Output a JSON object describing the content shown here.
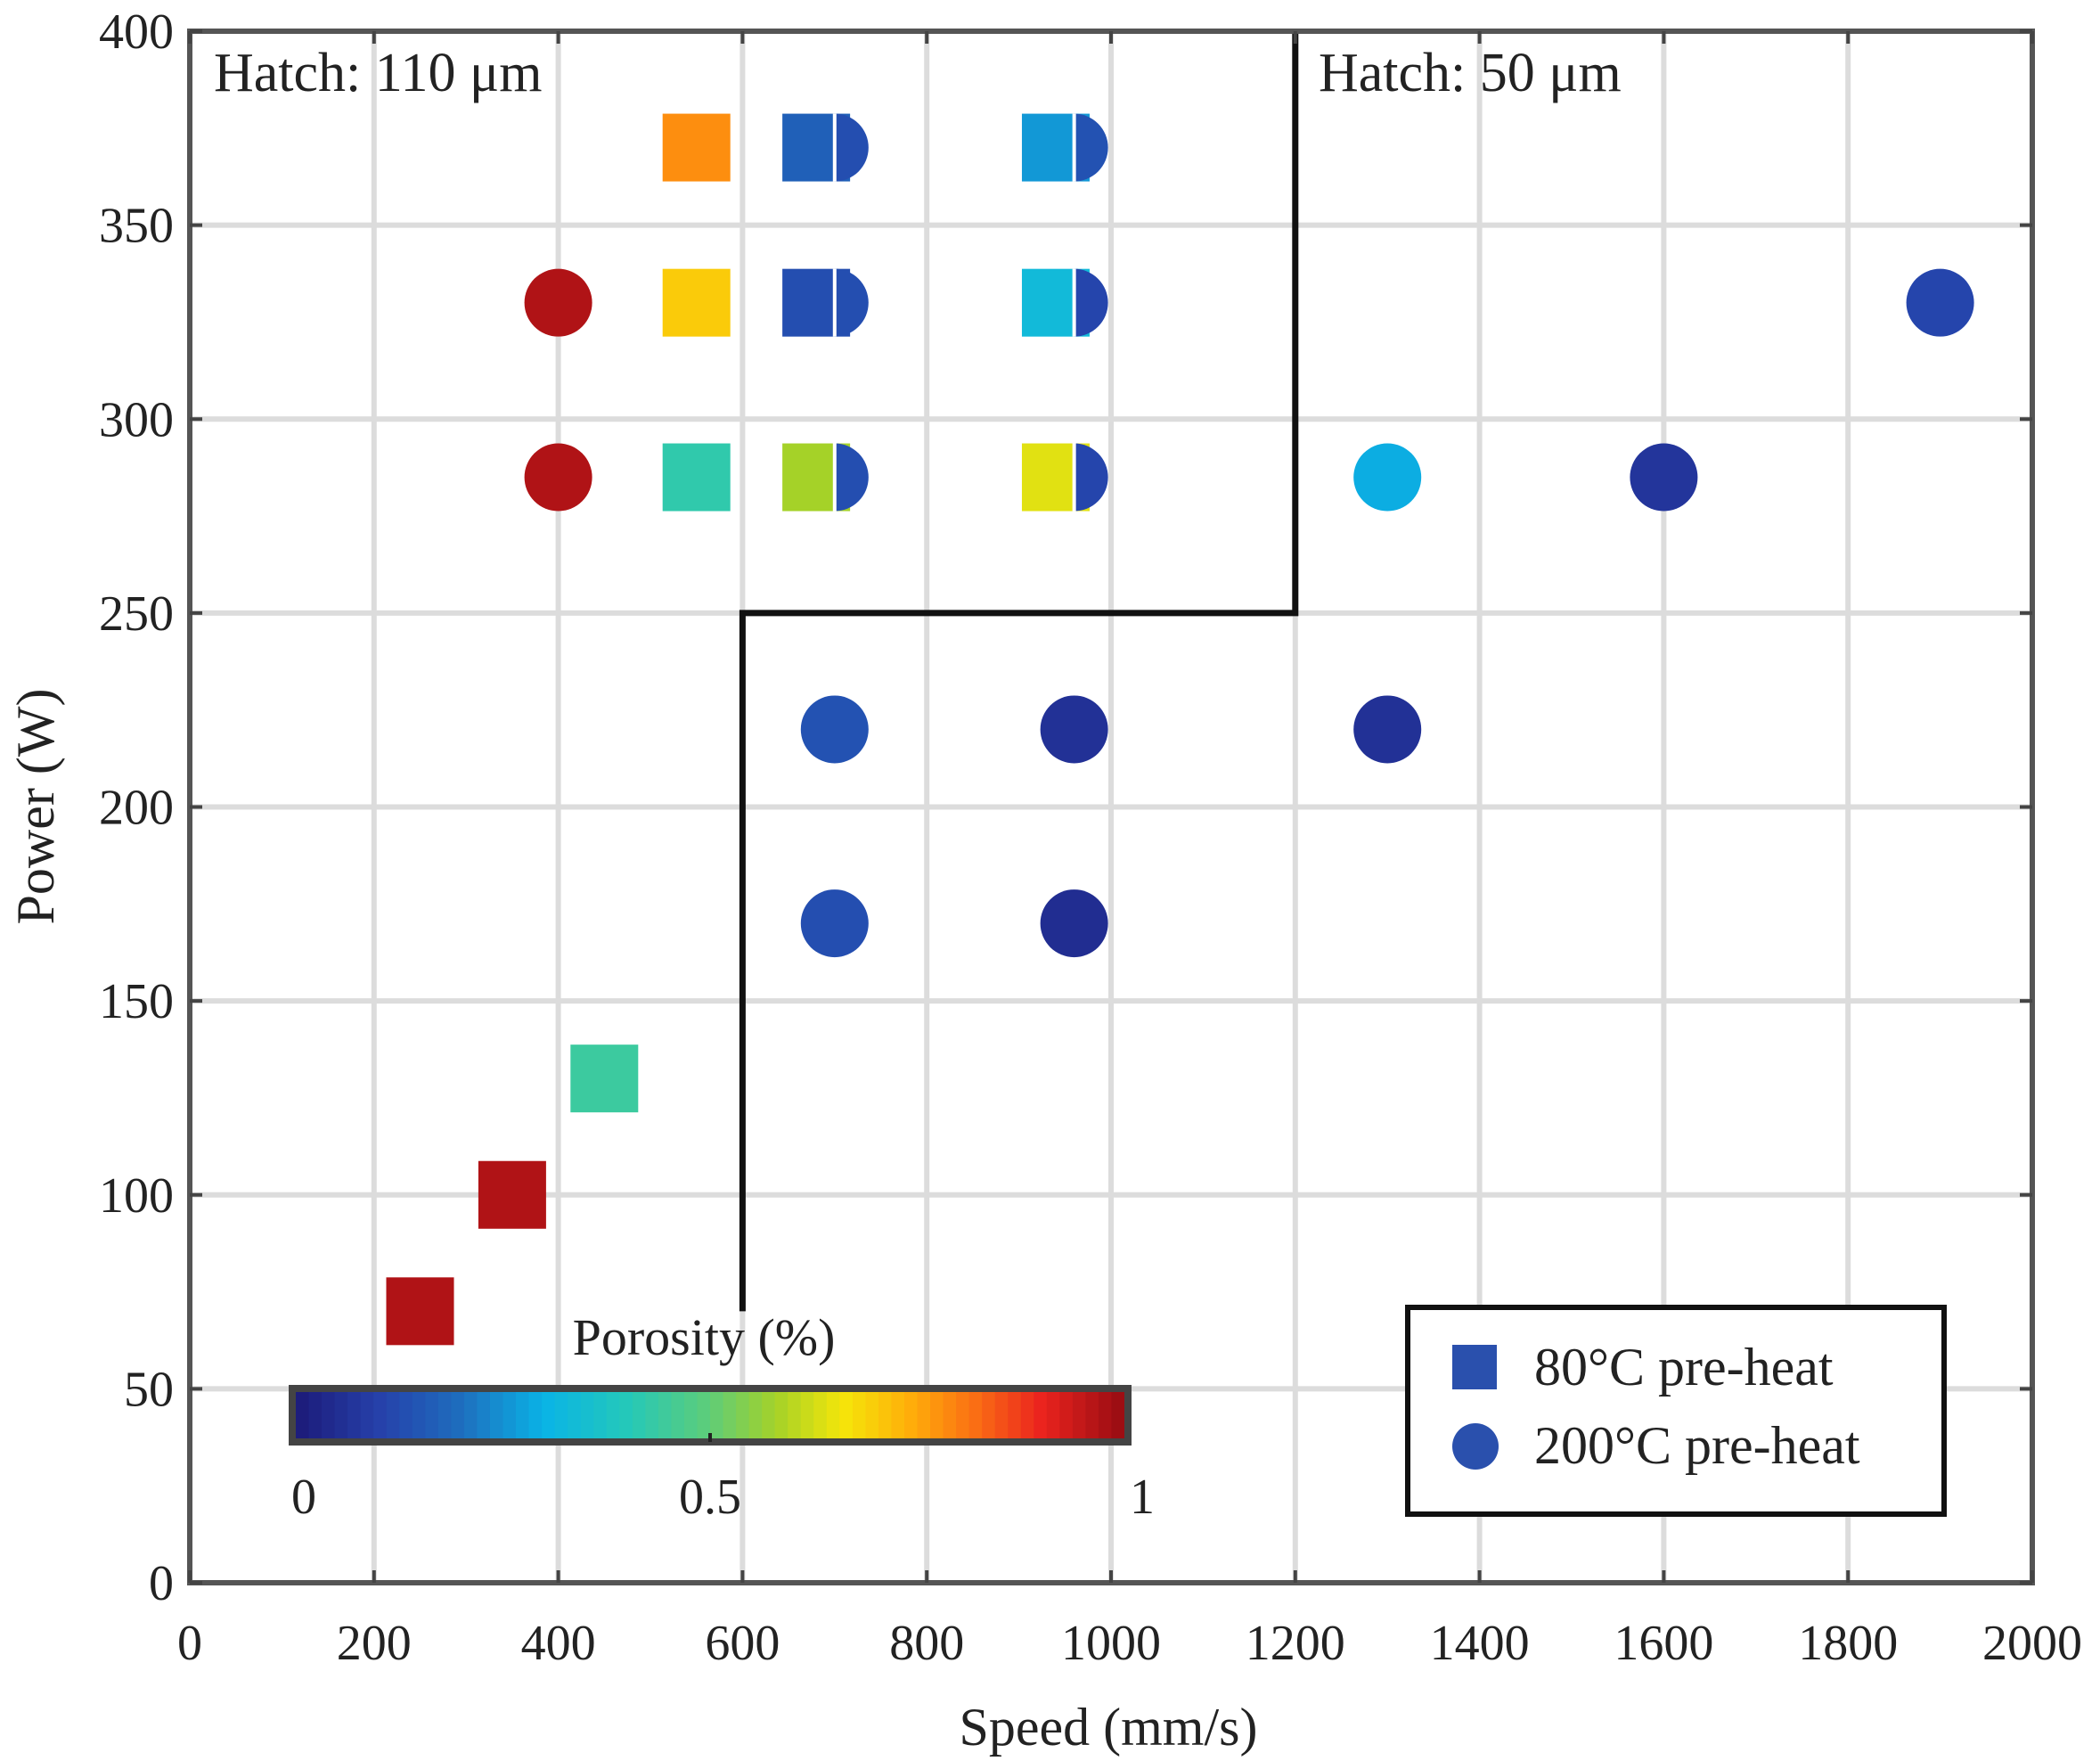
{
  "chart_data": {
    "type": "scatter",
    "title": "",
    "xlabel": "Speed (mm/s)",
    "ylabel": "Power (W)",
    "xlim": [
      0,
      2000
    ],
    "ylim": [
      0,
      400
    ],
    "xticks": [
      0,
      200,
      400,
      600,
      800,
      1000,
      1200,
      1400,
      1600,
      1800,
      2000
    ],
    "yticks": [
      0,
      50,
      100,
      150,
      200,
      250,
      300,
      350,
      400
    ],
    "grid": true,
    "annotations": {
      "hatch_left": "Hatch: 110 μm",
      "hatch_right": "Hatch: 50 μm"
    },
    "boundary": {
      "x": [
        600,
        600,
        1200,
        1200
      ],
      "y": [
        70,
        250,
        250,
        400
      ]
    },
    "colorbar": {
      "label": "Porosity (%)",
      "min": 0,
      "max": 1,
      "ticks": [
        "0",
        "0.5",
        "1"
      ],
      "placement": "bottom-left"
    },
    "legend": {
      "placement": "bottom-right",
      "entries": [
        "80°C pre-heat",
        "200°C pre-heat"
      ]
    },
    "series": [
      {
        "name": "80°C pre-heat",
        "marker": "square",
        "points": [
          {
            "x": 250,
            "y": 70,
            "porosity": 0.97
          },
          {
            "x": 350,
            "y": 100,
            "porosity": 0.97
          },
          {
            "x": 450,
            "y": 130,
            "porosity": 0.44
          },
          {
            "x": 550,
            "y": 285,
            "porosity": 0.42
          },
          {
            "x": 550,
            "y": 330,
            "porosity": 0.7
          },
          {
            "x": 550,
            "y": 370,
            "porosity": 0.78
          },
          {
            "x": 680,
            "y": 285,
            "porosity": 0.58
          },
          {
            "x": 680,
            "y": 330,
            "porosity": 0.13
          },
          {
            "x": 680,
            "y": 370,
            "porosity": 0.17
          },
          {
            "x": 940,
            "y": 285,
            "porosity": 0.64
          },
          {
            "x": 940,
            "y": 330,
            "porosity": 0.33
          },
          {
            "x": 940,
            "y": 370,
            "porosity": 0.26
          }
        ]
      },
      {
        "name": "200°C pre-heat",
        "marker": "circle",
        "points": [
          {
            "x": 400,
            "y": 285,
            "porosity": 0.97
          },
          {
            "x": 400,
            "y": 330,
            "porosity": 0.97
          },
          {
            "x": 700,
            "y": 170,
            "porosity": 0.13
          },
          {
            "x": 700,
            "y": 220,
            "porosity": 0.14
          },
          {
            "x": 700,
            "y": 285,
            "porosity": 0.13,
            "half": true
          },
          {
            "x": 700,
            "y": 330,
            "porosity": 0.13,
            "half": true
          },
          {
            "x": 700,
            "y": 370,
            "porosity": 0.13,
            "half": true
          },
          {
            "x": 960,
            "y": 170,
            "porosity": 0.05
          },
          {
            "x": 960,
            "y": 220,
            "porosity": 0.06
          },
          {
            "x": 960,
            "y": 285,
            "porosity": 0.11,
            "half": true
          },
          {
            "x": 960,
            "y": 330,
            "porosity": 0.11,
            "half": true
          },
          {
            "x": 960,
            "y": 370,
            "porosity": 0.14,
            "half": true
          },
          {
            "x": 1300,
            "y": 220,
            "porosity": 0.06
          },
          {
            "x": 1300,
            "y": 285,
            "porosity": 0.29
          },
          {
            "x": 1600,
            "y": 285,
            "porosity": 0.07
          },
          {
            "x": 1900,
            "y": 330,
            "porosity": 0.11
          }
        ]
      }
    ]
  }
}
